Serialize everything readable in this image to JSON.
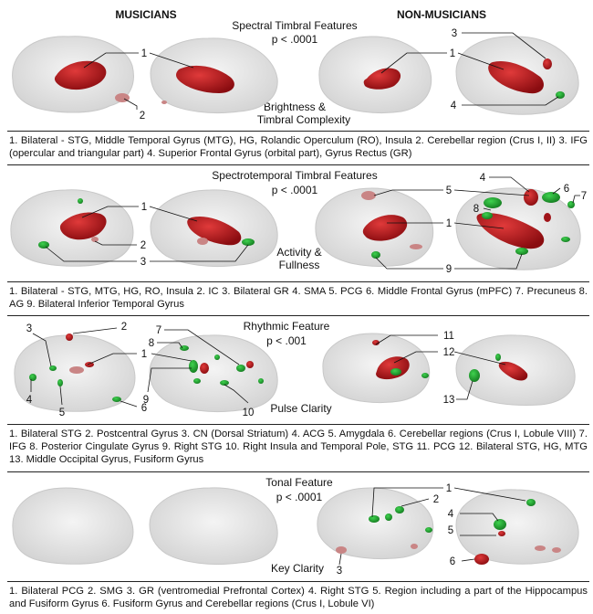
{
  "groups": {
    "left": "MUSICIANS",
    "right": "NON-MUSICIANS"
  },
  "panels": [
    {
      "title": "Spectral Timbral Features",
      "pvalue": "p < .0001",
      "subtitle": [
        "Brightness &",
        "Timbral Complexity"
      ],
      "labels": [
        "1",
        "2",
        "3",
        "1",
        "4"
      ],
      "caption": "1. Bilateral - STG, Middle Temporal Gyrus (MTG), HG, Rolandic Operculum (RO), Insula 2. Cerebellar region (Crus I, II) 3. IFG (opercular and triangular part) 4. Superior Frontal Gyrus (orbital part), Gyrus Rectus (GR)"
    },
    {
      "title": "Spectrotemporal Timbral Features",
      "pvalue": "p < .0001",
      "subtitle": [
        "Activity &",
        "Fullness"
      ],
      "labels": [
        "1",
        "2",
        "3",
        "4",
        "5",
        "6",
        "7",
        "8",
        "1",
        "9"
      ],
      "caption": "1. Bilateral - STG, MTG, HG, RO, Insula 2. IC 3. Bilateral GR 4. SMA 5. PCG 6. Middle Frontal Gyrus (mPFC) 7. Precuneus 8. AG 9. Bilateral Inferior Temporal Gyrus"
    },
    {
      "title": "Rhythmic Feature",
      "pvalue": "p < .001",
      "subtitle": [
        "Pulse Clarity"
      ],
      "labels": [
        "3",
        "2",
        "1",
        "4",
        "5",
        "6",
        "7",
        "8",
        "9",
        "10",
        "11",
        "12",
        "13"
      ],
      "caption": "1. Bilateral STG 2. Postcentral Gyrus 3. CN (Dorsal Striatum) 4. ACG 5. Amygdala 6. Cerebellar regions (Crus I, Lobule VIII) 7. IFG 8. Posterior Cingulate Gyrus 9. Right STG 10. Right Insula and Temporal Pole, STG 11. PCG 12. Bilateral STG, HG, MTG 13. Middle Occipital Gyrus, Fusiform Gyrus"
    },
    {
      "title": "Tonal Feature",
      "pvalue": "p < .0001",
      "subtitle": [
        "Key Clarity"
      ],
      "labels": [
        "1",
        "2",
        "4",
        "5",
        "6",
        "3"
      ],
      "caption": "1. Bilateral PCG 2. SMG 3. GR (ventromedial Prefrontal Cortex) 4. Right STG 5. Region including a part of the Hippocampus and Fusiform Gyrus 6. Fusiform Gyrus and Cerebellar regions (Crus I, Lobule VI)"
    }
  ],
  "colors": {
    "red": "#b3141b",
    "green": "#1e9e2b",
    "brain": "#d9d9d9",
    "pink": "#c98585"
  }
}
